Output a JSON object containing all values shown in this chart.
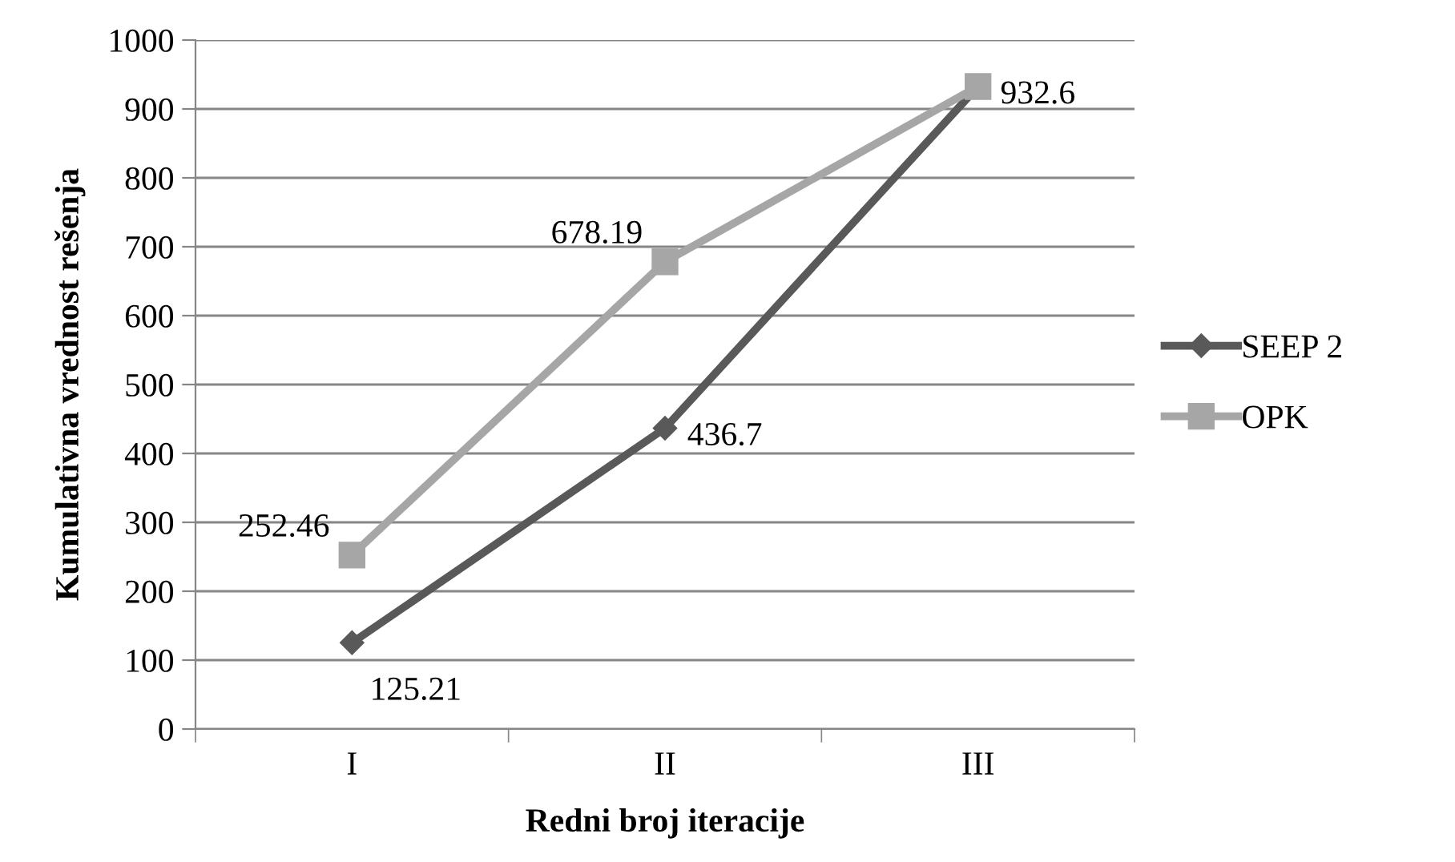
{
  "chart_data": {
    "type": "line",
    "xlabel": "Redni broj iteracije",
    "ylabel": "Kumulativna vrednost rešenja",
    "categories": [
      "I",
      "II",
      "III"
    ],
    "series": [
      {
        "name": "SEEP 2",
        "color": "#595959",
        "marker": "diamond",
        "values": [
          125.21,
          436.7,
          932.6
        ],
        "value_labels": [
          "125.21",
          "436.7",
          "932.6"
        ]
      },
      {
        "name": "OPK",
        "color": "#a6a6a6",
        "marker": "square",
        "values": [
          252.46,
          678.19,
          932.6
        ],
        "value_labels": [
          "252.46",
          "678.19",
          null
        ]
      }
    ],
    "ylim": [
      0,
      1000
    ],
    "yticks": [
      0,
      100,
      200,
      300,
      400,
      500,
      600,
      700,
      800,
      900,
      1000
    ],
    "grid": "y",
    "legend": "right",
    "line_style": "solid"
  }
}
